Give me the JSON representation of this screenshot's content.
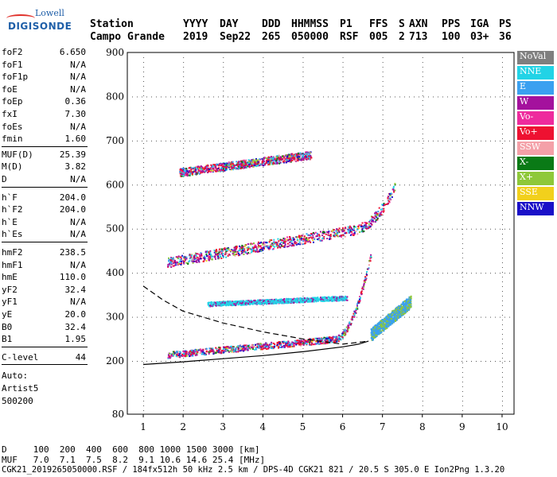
{
  "logo": {
    "line1": "Lowell",
    "line2": "DIGISONDE"
  },
  "header": {
    "row1": [
      "Station",
      "YYYY",
      "DAY",
      "DDD",
      "HHMMSS",
      "P1",
      "FFS",
      "S",
      "AXN",
      "PPS",
      "IGA",
      "PS"
    ],
    "row2": [
      "Campo Grande",
      "2019",
      "Sep22",
      "265",
      "050000",
      "RSF",
      "005",
      "2",
      "713",
      "100",
      "03+",
      "36"
    ]
  },
  "params": {
    "group1": [
      {
        "k": "foF2",
        "v": "6.650"
      },
      {
        "k": "foF1",
        "v": "N/A"
      },
      {
        "k": "foF1p",
        "v": "N/A"
      },
      {
        "k": "foE",
        "v": "N/A"
      },
      {
        "k": "foEp",
        "v": "0.36"
      },
      {
        "k": "fxI",
        "v": "7.30"
      },
      {
        "k": "foEs",
        "v": "N/A"
      },
      {
        "k": "fmin",
        "v": "1.60"
      }
    ],
    "group2": [
      {
        "k": "MUF(D)",
        "v": "25.39"
      },
      {
        "k": "M(D)",
        "v": "3.82"
      },
      {
        "k": "D",
        "v": "N/A"
      }
    ],
    "group3": [
      {
        "k": "h`F",
        "v": "204.0"
      },
      {
        "k": "h`F2",
        "v": "204.0"
      },
      {
        "k": "h`E",
        "v": "N/A"
      },
      {
        "k": "h`Es",
        "v": "N/A"
      }
    ],
    "group4": [
      {
        "k": "hmF2",
        "v": "238.5"
      },
      {
        "k": "hmF1",
        "v": "N/A"
      },
      {
        "k": "hmE",
        "v": "110.0"
      },
      {
        "k": "yF2",
        "v": "32.4"
      },
      {
        "k": "yF1",
        "v": "N/A"
      },
      {
        "k": "yE",
        "v": "20.0"
      },
      {
        "k": "B0",
        "v": "32.4"
      },
      {
        "k": "B1",
        "v": "1.95"
      }
    ],
    "clevel": {
      "k": "C-level",
      "v": "44"
    },
    "auto": [
      "Auto:",
      "Artist5",
      "500200"
    ]
  },
  "footer": {
    "d_line": "D     100  200  400  600  800 1000 1500 3000 [km]",
    "muf_line": "MUF   7.0  7.1  7.5  8.2  9.1 10.6 14.6 25.4 [MHz]",
    "file_line": "CGK21_2019265050000.RSF / 184fx512h 50 kHz 2.5 km / DPS-4D CGK21 821 / 20.5 S 305.0 E Ion2Png 1.3.20"
  },
  "legend": [
    {
      "label": "NoVal",
      "color": "#7f7f7f",
      "text": "#ffffff"
    },
    {
      "label": "NNE",
      "color": "#22d3e6",
      "text": "#ffffff"
    },
    {
      "label": "E",
      "color": "#3aa0f0",
      "text": "#ffffff"
    },
    {
      "label": "W",
      "color": "#a4119d",
      "text": "#ffffff"
    },
    {
      "label": "Vo-",
      "color": "#ee2a9d",
      "text": "#ffffff"
    },
    {
      "label": "Vo+",
      "color": "#ee1131",
      "text": "#ffffff"
    },
    {
      "label": "SSW",
      "color": "#f4a0a8",
      "text": "#ffffff"
    },
    {
      "label": "X-",
      "color": "#0a7a16",
      "text": "#ffffff"
    },
    {
      "label": "X+",
      "color": "#8ec83a",
      "text": "#ffffff"
    },
    {
      "label": "SSE",
      "color": "#f2d01c",
      "text": "#ffffff"
    },
    {
      "label": "NNW",
      "color": "#1a10c8",
      "text": "#ffffff"
    }
  ],
  "chart_data": {
    "type": "scatter",
    "title": "",
    "xlabel": "",
    "ylabel": "",
    "xlim": [
      0.6,
      10.3
    ],
    "ylim": [
      80,
      900
    ],
    "x_ticks": [
      1,
      2,
      3,
      4,
      5,
      6,
      7,
      8,
      9,
      10
    ],
    "y_ticks": [
      80,
      200,
      300,
      400,
      500,
      600,
      700,
      800,
      900
    ],
    "grid": true,
    "echo_bands": [
      {
        "name": "F trace",
        "x_start": 1.6,
        "x_end": 6.7,
        "h_start": 212,
        "h_end": 255,
        "spread": 14,
        "curve_to": 440
      },
      {
        "name": "extraordinary trace",
        "x_start": 6.7,
        "x_end": 7.7,
        "h_start": 255,
        "h_end": 330,
        "spread": 18
      },
      {
        "name": "Es-like band",
        "x_start": 2.6,
        "x_end": 6.1,
        "h_start": 328,
        "h_end": 342,
        "spread": 10
      },
      {
        "name": "2nd hop",
        "x_start": 1.6,
        "x_end": 7.3,
        "h_start": 420,
        "h_end": 510,
        "spread": 22,
        "curve_to": 590
      },
      {
        "name": "3rd hop",
        "x_start": 1.9,
        "x_end": 5.2,
        "h_start": 625,
        "h_end": 665,
        "spread": 18
      }
    ],
    "profile_curve": [
      [
        1,
        192
      ],
      [
        2,
        198
      ],
      [
        3,
        205
      ],
      [
        4,
        212
      ],
      [
        5,
        221
      ],
      [
        6,
        232
      ],
      [
        6.4,
        238
      ],
      [
        6.65,
        245
      ]
    ],
    "dashed_curve": [
      [
        1,
        370
      ],
      [
        1.5,
        338
      ],
      [
        2,
        313
      ],
      [
        3,
        286
      ],
      [
        4,
        266
      ],
      [
        5,
        250
      ],
      [
        6,
        238
      ],
      [
        6.65,
        245
      ]
    ]
  }
}
